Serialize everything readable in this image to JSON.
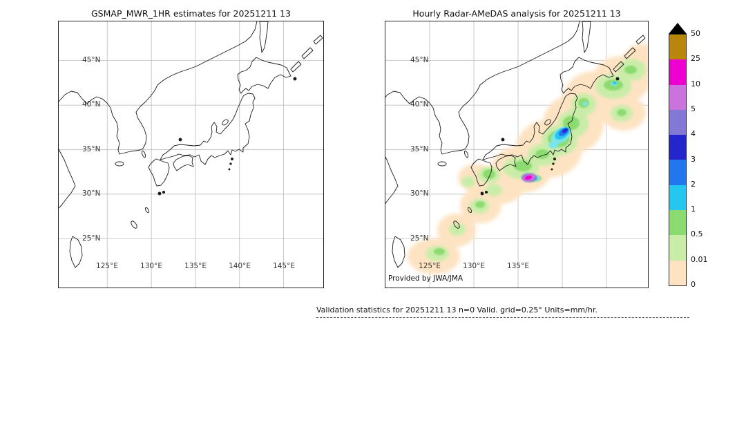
{
  "panels": [
    {
      "title": "GSMAP_MWR_1HR estimates for 20251211 13",
      "lat_ticks": [
        "45°N",
        "40°N",
        "35°N",
        "30°N",
        "25°N"
      ],
      "lon_ticks": [
        "125°E",
        "130°E",
        "135°E",
        "140°E",
        "145°E"
      ],
      "credit": ""
    },
    {
      "title": "Hourly Radar-AMeDAS analysis for 20251211 13",
      "lat_ticks": [
        "45°N",
        "40°N",
        "35°N",
        "30°N",
        "25°N"
      ],
      "lon_ticks": [
        "125°E",
        "130°E",
        "135°E"
      ],
      "credit": "Provided by JWA/JMA"
    }
  ],
  "colorbar": {
    "tick_labels": [
      "50",
      "25",
      "10",
      "5",
      "4",
      "3",
      "2",
      "1",
      "0.5",
      "0.01",
      "0"
    ],
    "units": "mm/hr",
    "overflow_triangle_color": "#000000",
    "segments": [
      {
        "range": "25-50",
        "color": "#b8860b"
      },
      {
        "range": "10-25",
        "color": "#ee00d0"
      },
      {
        "range": "5-10",
        "color": "#ca73dd"
      },
      {
        "range": "4-5",
        "color": "#8478d6"
      },
      {
        "range": "3-4",
        "color": "#2525cc"
      },
      {
        "range": "2-3",
        "color": "#2277ee"
      },
      {
        "range": "1-2",
        "color": "#25c6f0"
      },
      {
        "range": "0.5-1",
        "color": "#8cdb70"
      },
      {
        "range": "0.01-0.5",
        "color": "#c9eda9"
      },
      {
        "range": "0-0.01",
        "color": "#fde3c2"
      }
    ]
  },
  "footer": {
    "caption": "Validation statistics for 20251211 13  n=0 Valid. grid=0.25° Units=mm/hr."
  },
  "chart_data": [
    {
      "type": "heatmap",
      "title": "GSMAP_MWR_1HR estimates for 20251211 13",
      "x_tick_labels": [
        "125°E",
        "130°E",
        "135°E",
        "140°E",
        "145°E"
      ],
      "y_tick_labels": [
        "45°N",
        "40°N",
        "35°N",
        "30°N",
        "25°N"
      ],
      "xlim_deg_east": [
        119.5,
        149.5
      ],
      "ylim_deg_north": [
        19.5,
        49.5
      ],
      "grid": true,
      "values_note": "empty field - no MWR precipitation estimates plotted (n=0)"
    },
    {
      "type": "heatmap",
      "title": "Hourly Radar-AMeDAS analysis for 20251211 13",
      "x_tick_labels": [
        "125°E",
        "130°E",
        "135°E"
      ],
      "y_tick_labels": [
        "45°N",
        "40°N",
        "35°N",
        "30°N",
        "25°N"
      ],
      "xlim_deg_east": [
        120.0,
        149.7
      ],
      "ylim_deg_north": [
        19.5,
        49.5
      ],
      "grid": true,
      "units": "mm/hr",
      "credit": "Provided by JWA/JMA",
      "features": [
        {
          "intensity_mm_hr": "0.01-0.5",
          "where": "broad SW-NE band of light rain from the Okinawa/Ryukyu islands across Kyushu, Shikoku and central Honshu up to eastern Hokkaido"
        },
        {
          "intensity_mm_hr": "0.5-1",
          "where": "green patches over Kyushu, the Ryukyu chain, Shikoku/Kinki, central and northern Honshu, eastern Hokkaido"
        },
        {
          "intensity_mm_hr": "1-4",
          "where": "cyan-blue elongated core along the Pacific coast of central/northern Honshu near 36-38N, 139-141E"
        },
        {
          "intensity_mm_hr": "4-5",
          "where": "small navy core embedded in the Honshu coastal band near 37N, 140E"
        },
        {
          "intensity_mm_hr": "5-25",
          "where": "small purple/magenta maximum offshore south of the Kii area near 31.8N, 136.3E"
        }
      ],
      "colorbar_levels": [
        0,
        0.01,
        0.5,
        1,
        2,
        3,
        4,
        5,
        10,
        25,
        50
      ]
    }
  ]
}
